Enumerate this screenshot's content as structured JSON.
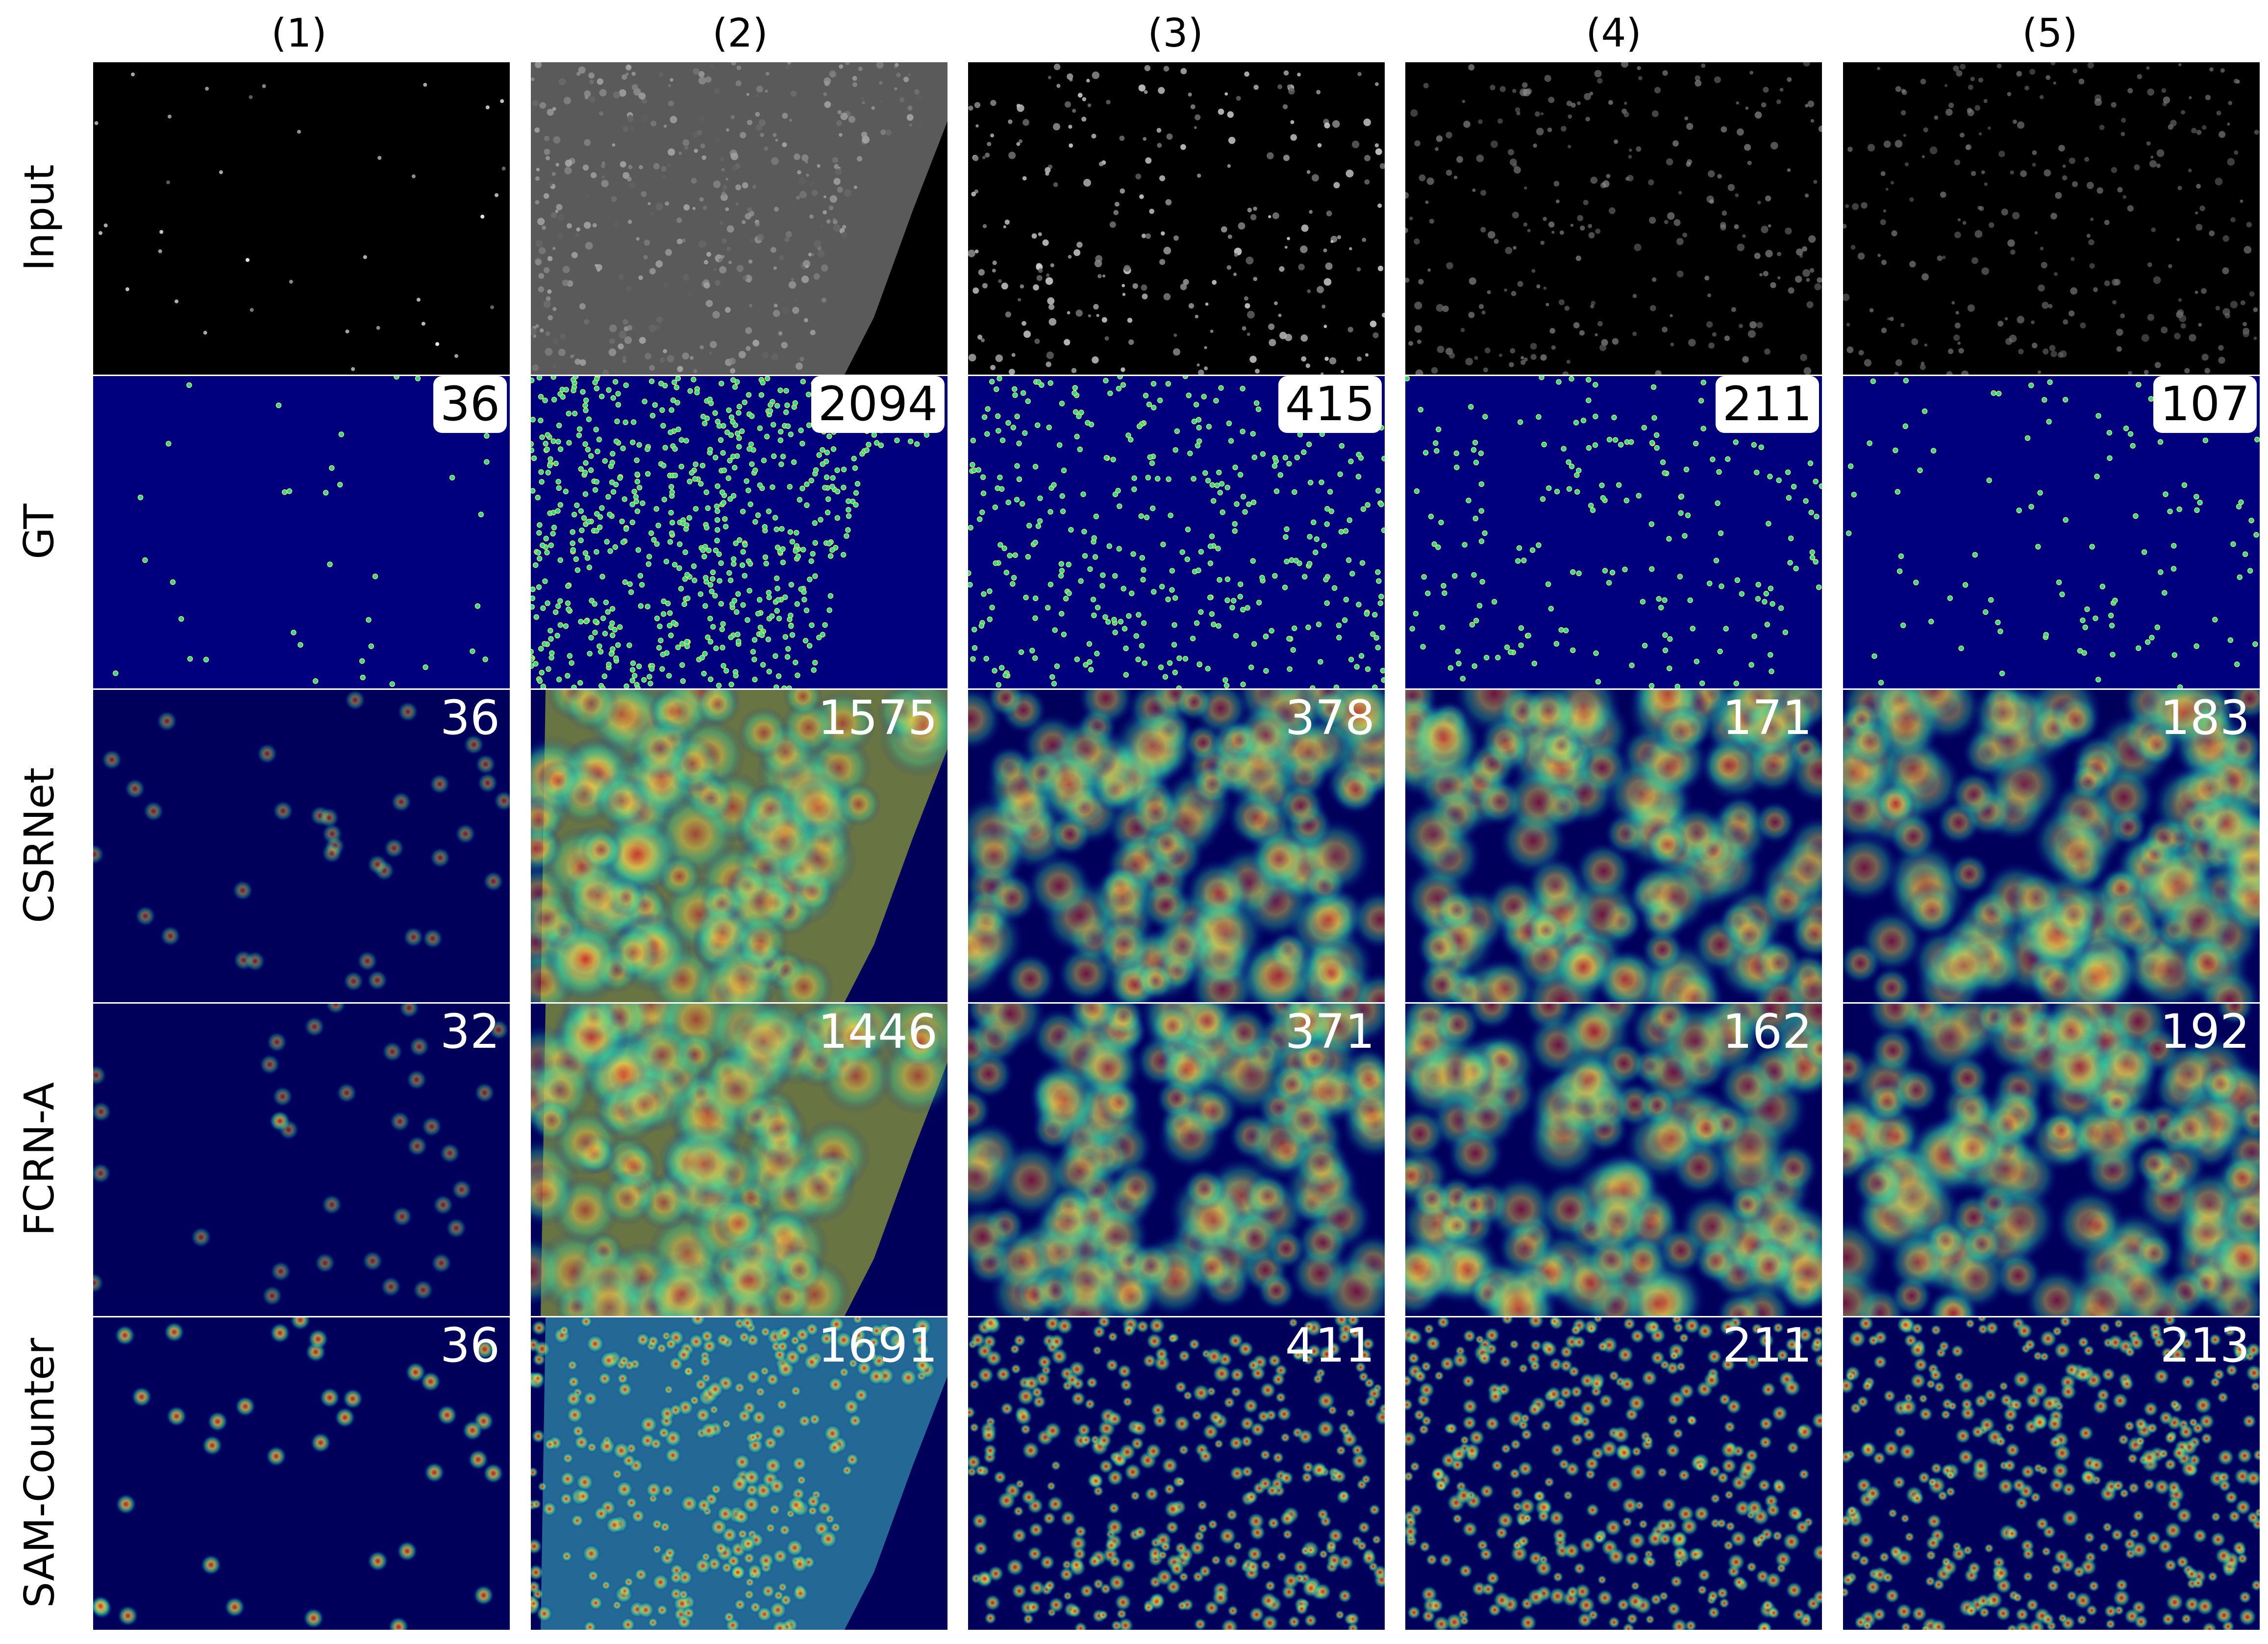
{
  "columns": [
    "(1)",
    "(2)",
    "(3)",
    "(4)",
    "(5)"
  ],
  "rows": [
    "Input",
    "GT",
    "CSRNet",
    "FCRN-A",
    "SAM-Counter"
  ],
  "counts": {
    "GT": [
      "36",
      "2094",
      "415",
      "211",
      "107"
    ],
    "CSRNet": [
      "36",
      "1575",
      "378",
      "171",
      "183"
    ],
    "FCRN-A": [
      "32",
      "1446",
      "371",
      "162",
      "192"
    ],
    "SAM-Counter": [
      "36",
      "1691",
      "411",
      "211",
      "213"
    ]
  },
  "colors": {
    "background": "#ffffff",
    "density_low": "#00007f",
    "density_mid": "#2fd4a0",
    "density_high": "#c8202a",
    "input_background": "#000000",
    "count_text_on_image": "#ffffff"
  }
}
